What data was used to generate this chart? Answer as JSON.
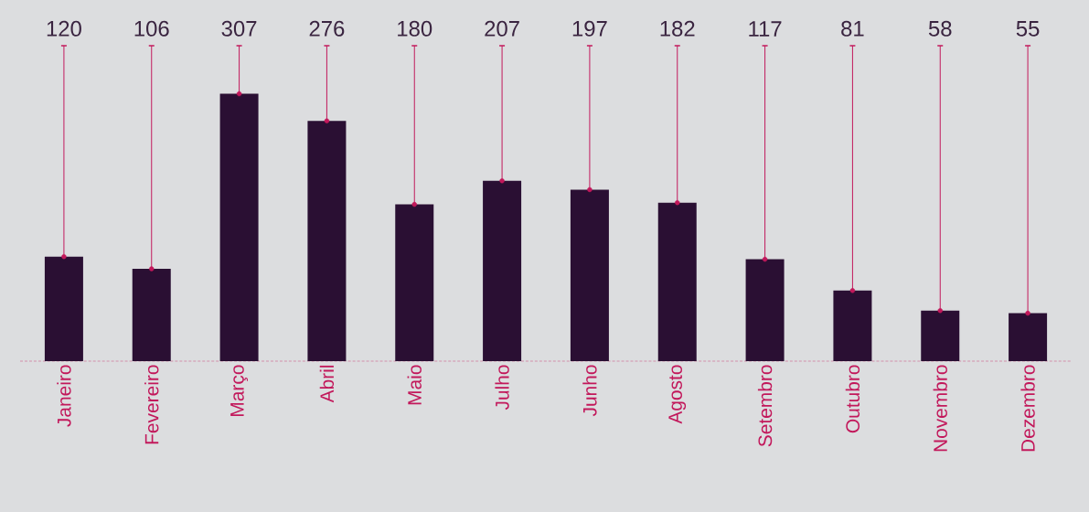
{
  "chart_data": {
    "type": "bar",
    "categories": [
      "Janeiro",
      "Fevereiro",
      "Março",
      "Abril",
      "Maio",
      "Julho",
      "Junho",
      "Agosto",
      "Setembro",
      "Outubro",
      "Novembro",
      "Dezembro"
    ],
    "series": [
      {
        "color": "#2a0f33",
        "values": [
          120,
          106,
          307,
          276,
          180,
          207,
          197,
          182,
          117,
          81,
          58,
          55
        ],
        "value_labels": [
          "120",
          "106",
          "307",
          "276",
          "180",
          "207",
          "197",
          "182",
          "117",
          "81",
          "58",
          "55"
        ]
      },
      {
        "type": "scatter",
        "color": "#c2185b",
        "marker": "circle",
        "x": [
          "Janeiro",
          "Fevereiro",
          "Março",
          "Abril",
          "Maio",
          "Julho",
          "Junho",
          "Agosto",
          "Setembro",
          "Outubro",
          "Novembro",
          "Dezembro"
        ],
        "values": [
          120,
          106,
          307,
          276,
          180,
          207,
          197,
          182,
          117,
          81,
          58,
          55
        ]
      }
    ],
    "grid": "x"
  }
}
